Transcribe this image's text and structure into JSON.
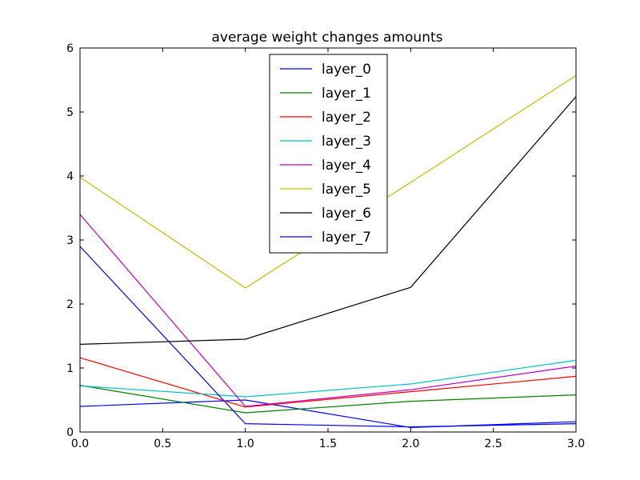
{
  "chart_data": {
    "type": "line",
    "title": "average weight changes amounts",
    "xlabel": "",
    "ylabel": "",
    "xlim": [
      0.0,
      3.0
    ],
    "ylim": [
      0,
      6
    ],
    "x": [
      0.0,
      1.0,
      2.0,
      3.0
    ],
    "x_ticks": [
      "0.0",
      "0.5",
      "1.0",
      "1.5",
      "2.0",
      "2.5",
      "3.0"
    ],
    "y_ticks": [
      "0",
      "1",
      "2",
      "3",
      "4",
      "5",
      "6"
    ],
    "grid": false,
    "legend_position": "top-center",
    "series": [
      {
        "name": "layer_0",
        "color": "#0000ff",
        "values": [
          0.4,
          0.5,
          0.07,
          0.16
        ]
      },
      {
        "name": "layer_1",
        "color": "#008000",
        "values": [
          0.73,
          0.3,
          0.48,
          0.58
        ]
      },
      {
        "name": "layer_2",
        "color": "#ff0000",
        "values": [
          1.16,
          0.39,
          0.63,
          0.87
        ]
      },
      {
        "name": "layer_3",
        "color": "#00bfbf",
        "values": [
          0.72,
          0.55,
          0.75,
          1.12
        ]
      },
      {
        "name": "layer_4",
        "color": "#bf00bf",
        "values": [
          3.4,
          0.4,
          0.66,
          1.03
        ]
      },
      {
        "name": "layer_5",
        "color": "#bfbf00",
        "values": [
          3.98,
          2.25,
          3.9,
          5.57
        ]
      },
      {
        "name": "layer_6",
        "color": "#000000",
        "values": [
          1.37,
          1.45,
          2.26,
          5.24
        ]
      },
      {
        "name": "layer_7",
        "color": "#0000ff",
        "values": [
          2.9,
          0.13,
          0.08,
          0.13
        ]
      }
    ]
  }
}
